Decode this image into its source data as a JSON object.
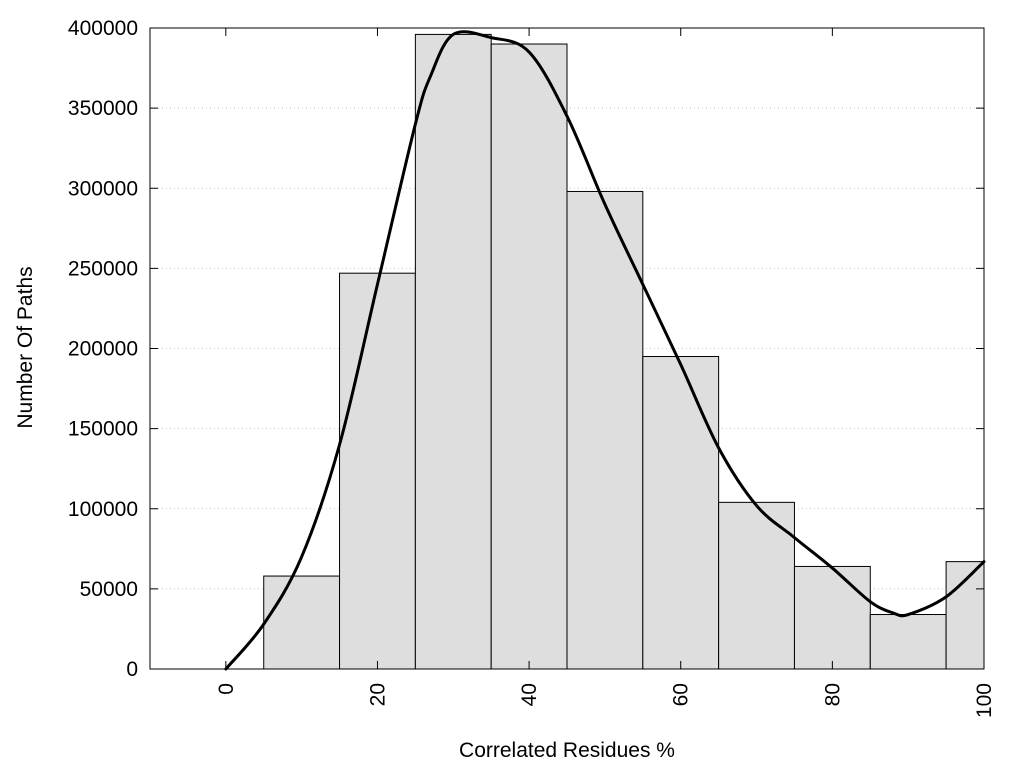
{
  "chart_data": {
    "type": "bar",
    "xlabel": "Correlated Residues %",
    "ylabel": "Number Of Paths",
    "xlim": [
      -10,
      100
    ],
    "ylim": [
      0,
      400000
    ],
    "x_ticks": [
      0,
      20,
      40,
      60,
      80,
      100
    ],
    "y_ticks": [
      0,
      50000,
      100000,
      150000,
      200000,
      250000,
      300000,
      350000,
      400000
    ],
    "grid": "horizontal dotted",
    "bin_width": 10,
    "bar_color": "#dedede",
    "bars": [
      {
        "x": 10,
        "value": 58000
      },
      {
        "x": 20,
        "value": 247000
      },
      {
        "x": 30,
        "value": 396000
      },
      {
        "x": 40,
        "value": 390000
      },
      {
        "x": 50,
        "value": 298000
      },
      {
        "x": 60,
        "value": 195000
      },
      {
        "x": 70,
        "value": 104000
      },
      {
        "x": 80,
        "value": 64000
      },
      {
        "x": 90,
        "value": 34000
      },
      {
        "x": 100,
        "value": 67000
      }
    ],
    "curve": {
      "x": [
        0,
        5,
        10,
        15,
        20,
        25,
        27,
        30,
        35,
        40,
        45,
        50,
        55,
        60,
        65,
        70,
        75,
        80,
        85,
        88,
        90,
        95,
        100
      ],
      "y": [
        0,
        28000,
        70000,
        140000,
        240000,
        340000,
        370000,
        396000,
        394000,
        385000,
        345000,
        290000,
        240000,
        190000,
        138000,
        102000,
        82000,
        63000,
        42000,
        35000,
        34000,
        45000,
        67000
      ]
    }
  }
}
